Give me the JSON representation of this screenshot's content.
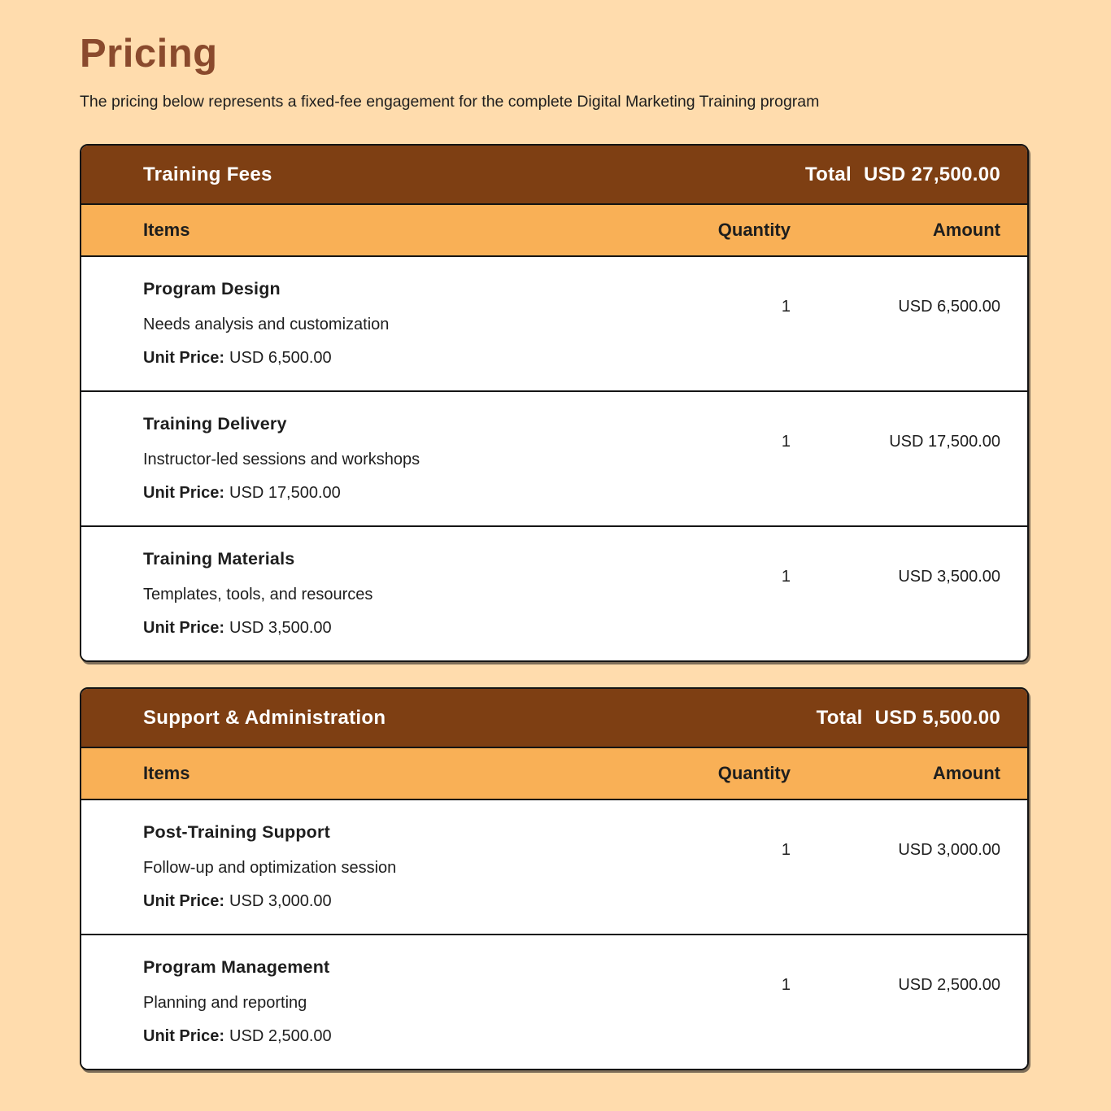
{
  "page": {
    "title": "Pricing",
    "subtitle": "The pricing below represents a fixed-fee engagement for the complete Digital Marketing Training program"
  },
  "labels": {
    "total": "Total",
    "items": "Items",
    "quantity": "Quantity",
    "amount": "Amount",
    "unit_price": "Unit Price:"
  },
  "colors": {
    "background": "#FFDCAD",
    "header_brown": "#7E3F13",
    "title_brown": "#8A4A2D",
    "subheader_orange": "#F9B056",
    "border_dark": "#141414",
    "text_dark": "#1E1E1E",
    "row_bg": "#FFFFFF",
    "header_text": "#FFFFFF"
  },
  "tables": [
    {
      "title": "Training Fees",
      "total": "USD 27,500.00",
      "rows": [
        {
          "name": "Program Design",
          "description": "Needs analysis and customization",
          "unit_price": "USD 6,500.00",
          "quantity": "1",
          "amount": "USD 6,500.00"
        },
        {
          "name": "Training Delivery",
          "description": "Instructor-led sessions and workshops",
          "unit_price": "USD 17,500.00",
          "quantity": "1",
          "amount": "USD 17,500.00"
        },
        {
          "name": "Training Materials",
          "description": "Templates, tools, and resources",
          "unit_price": "USD 3,500.00",
          "quantity": "1",
          "amount": "USD 3,500.00"
        }
      ]
    },
    {
      "title": "Support & Administration",
      "total": "USD 5,500.00",
      "rows": [
        {
          "name": "Post-Training Support",
          "description": "Follow-up and optimization session",
          "unit_price": "USD 3,000.00",
          "quantity": "1",
          "amount": "USD 3,000.00"
        },
        {
          "name": "Program Management",
          "description": "Planning and reporting",
          "unit_price": "USD 2,500.00",
          "quantity": "1",
          "amount": "USD 2,500.00"
        }
      ]
    }
  ]
}
